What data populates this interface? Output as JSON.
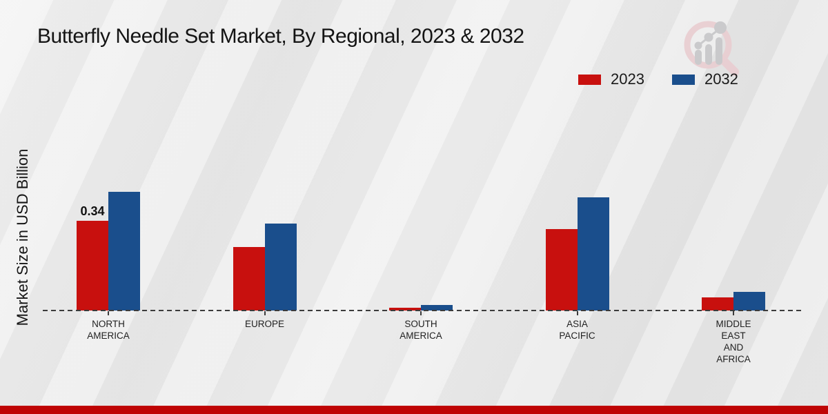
{
  "title": "Butterfly Needle Set Market, By Regional, 2023 & 2032",
  "ylabel": "Market Size in USD Billion",
  "colors": {
    "series_2023": "#c8100e",
    "series_2032": "#1a4e8c",
    "footer_bar": "#bf0404",
    "baseline": "#3b3b3b",
    "logo_ring": "#e9cdd1",
    "logo_bars": "#c7c7c9"
  },
  "legend": {
    "position": "top-right",
    "items": [
      {
        "label": "2023",
        "color": "#c8100e"
      },
      {
        "label": "2032",
        "color": "#1a4e8c"
      }
    ]
  },
  "chart_data": {
    "type": "bar",
    "title": "Butterfly Needle Set Market, By Regional, 2023 & 2032",
    "xlabel": "",
    "ylabel": "Market Size in USD Billion",
    "categories": [
      "NORTH AMERICA",
      "EUROPE",
      "SOUTH AMERICA",
      "ASIA PACIFIC",
      "MIDDLE EAST AND AFRICA"
    ],
    "category_lines": [
      [
        "NORTH",
        "AMERICA"
      ],
      [
        "EUROPE"
      ],
      [
        "SOUTH",
        "AMERICA"
      ],
      [
        "ASIA",
        "PACIFIC"
      ],
      [
        "MIDDLE",
        "EAST",
        "AND",
        "AFRICA"
      ]
    ],
    "series": [
      {
        "name": "2023",
        "color": "#c8100e",
        "values": [
          0.34,
          0.24,
          0.01,
          0.31,
          0.05
        ]
      },
      {
        "name": "2032",
        "color": "#1a4e8c",
        "values": [
          0.45,
          0.33,
          0.02,
          0.43,
          0.07
        ]
      }
    ],
    "data_labels": [
      {
        "series": "2023",
        "category": "NORTH AMERICA",
        "text": "0.34"
      }
    ],
    "ylim": [
      0,
      0.5
    ],
    "grid": false,
    "zero_line": "dashed",
    "legend_position": "top-right"
  },
  "logo": {
    "name": "magnifier-growth-logo"
  }
}
